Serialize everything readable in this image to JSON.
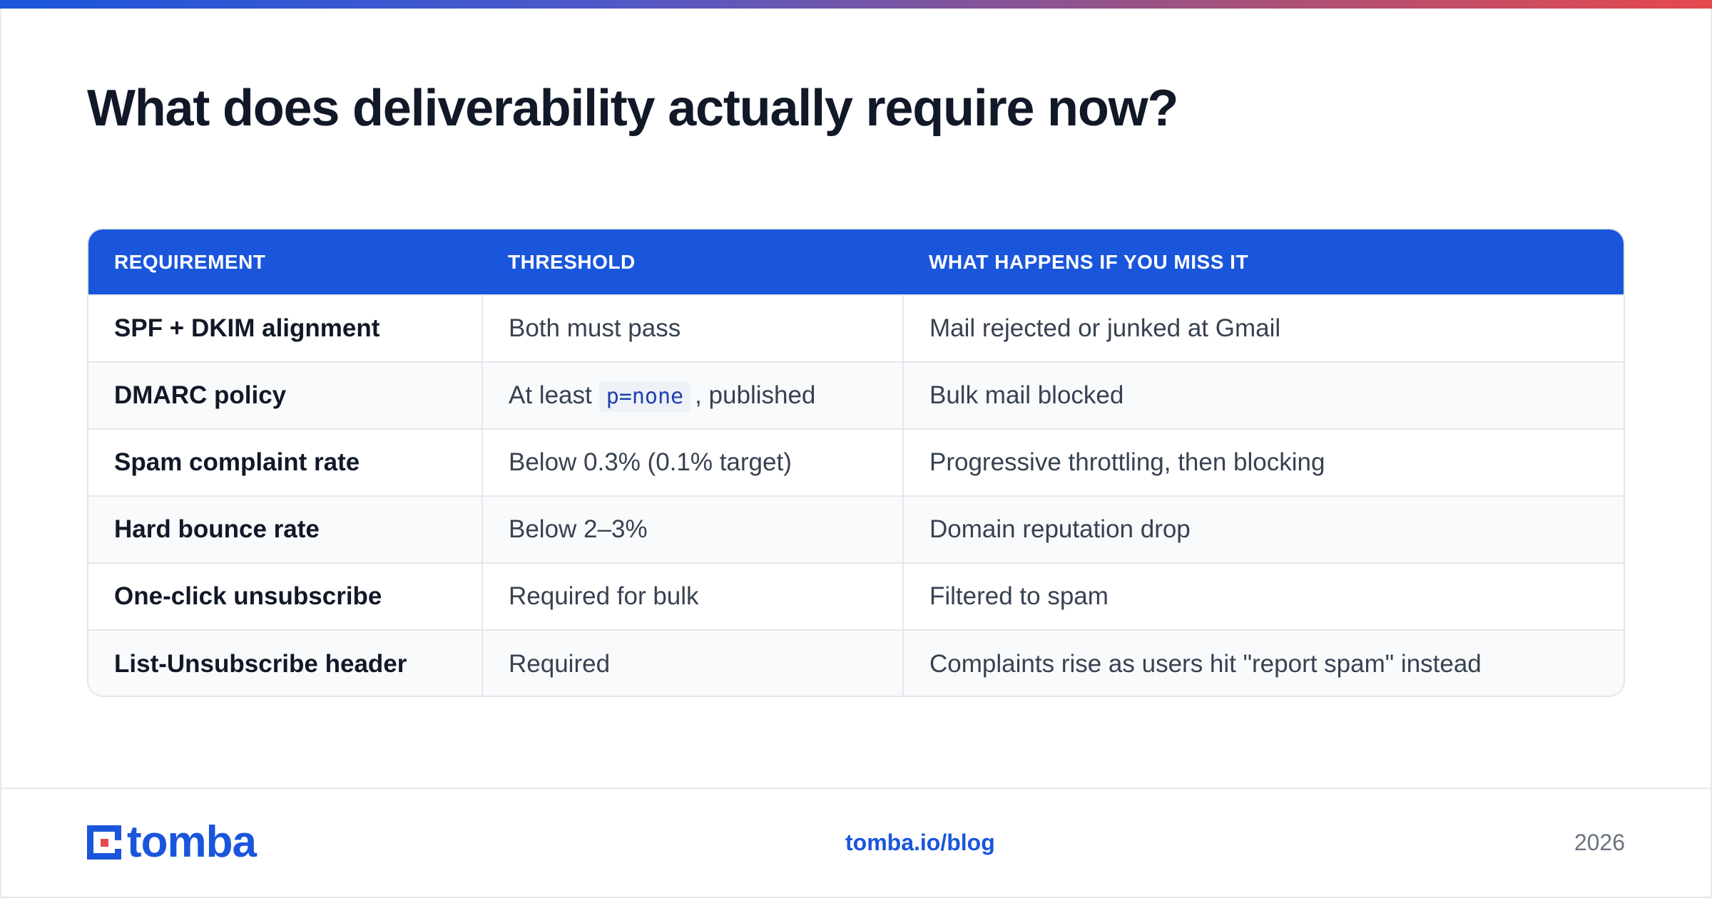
{
  "title": "What does deliverability actually require now?",
  "colors": {
    "accent": "#1a56db",
    "accent_red": "#e5484d",
    "title": "#111827"
  },
  "table": {
    "headers": [
      "REQUIREMENT",
      "THRESHOLD",
      "WHAT HAPPENS IF YOU MISS IT"
    ],
    "rows": [
      {
        "requirement": "SPF + DKIM alignment",
        "threshold": "Both must pass",
        "consequence": "Mail rejected or junked at Gmail"
      },
      {
        "requirement": "DMARC policy",
        "threshold_prefix": "At least",
        "threshold_code": "p=none",
        "threshold_suffix": ", published",
        "consequence": "Bulk mail blocked"
      },
      {
        "requirement": "Spam complaint rate",
        "threshold": "Below 0.3% (0.1% target)",
        "consequence": "Progressive throttling, then blocking"
      },
      {
        "requirement": "Hard bounce rate",
        "threshold": "Below 2–3%",
        "consequence": "Domain reputation drop"
      },
      {
        "requirement": "One-click unsubscribe",
        "threshold": "Required for bulk",
        "consequence": "Filtered to spam"
      },
      {
        "requirement": "List-Unsubscribe header",
        "threshold": "Required",
        "consequence": "Complaints rise as users hit \"report spam\" instead"
      }
    ]
  },
  "footer": {
    "logo_text": "tomba",
    "logo_icon": "tomba-logo-icon",
    "link": "tomba.io/blog",
    "year": "2026"
  }
}
